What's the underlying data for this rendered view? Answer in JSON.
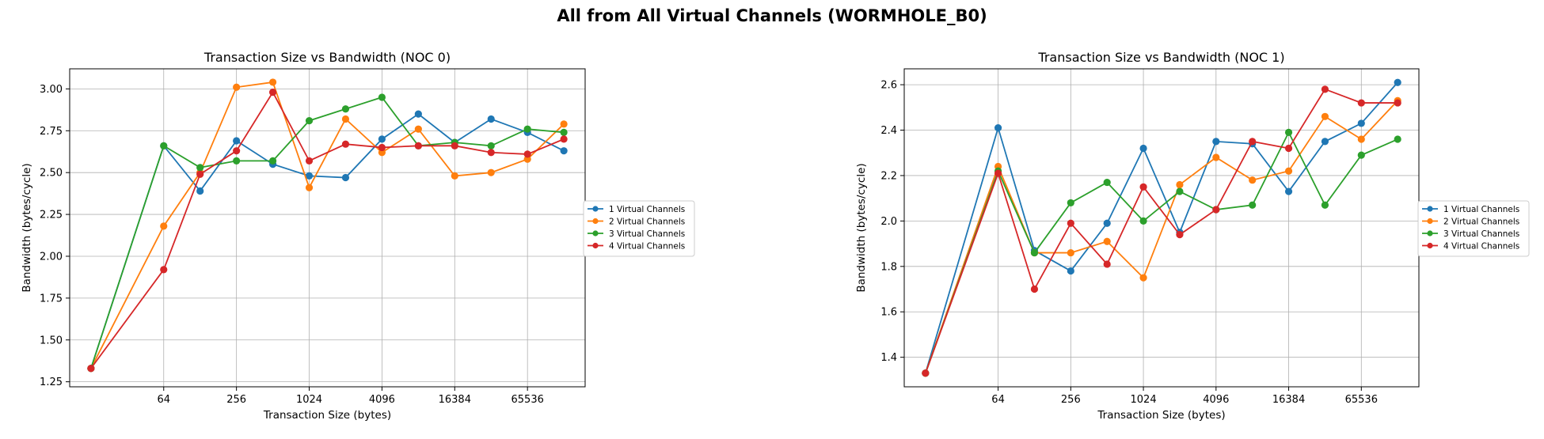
{
  "suptitle": "All from All Virtual Channels (WORMHOLE_B0)",
  "colors": [
    "#1f77b4",
    "#ff7f0e",
    "#2ca02c",
    "#d62728"
  ],
  "chart_data": [
    {
      "type": "line",
      "title": "Transaction Size vs Bandwidth (NOC 0)",
      "xlabel": "Transaction Size (bytes)",
      "ylabel": "Bandwidth (bytes/cycle)",
      "x_scale": "log2",
      "x": [
        16,
        64,
        128,
        256,
        512,
        1024,
        2048,
        4096,
        8192,
        16384,
        32768,
        65536,
        131072
      ],
      "x_ticks": [
        "64",
        "256",
        "1024",
        "4096",
        "16384",
        "65536"
      ],
      "x_tick_values": [
        64,
        256,
        1024,
        4096,
        16384,
        65536
      ],
      "ylim": [
        1.22,
        3.12
      ],
      "y_ticks": [
        "1.25",
        "1.50",
        "1.75",
        "2.00",
        "2.25",
        "2.50",
        "2.75",
        "3.00"
      ],
      "y_tick_values": [
        1.25,
        1.5,
        1.75,
        2.0,
        2.25,
        2.5,
        2.75,
        3.0
      ],
      "grid": true,
      "legend": "right-outside",
      "series": [
        {
          "name": "1 Virtual Channels",
          "values": [
            1.33,
            2.66,
            2.39,
            2.69,
            2.55,
            2.48,
            2.47,
            2.7,
            2.85,
            2.68,
            2.82,
            2.74,
            2.63
          ]
        },
        {
          "name": "2 Virtual Channels",
          "values": [
            1.33,
            2.18,
            2.5,
            3.01,
            3.04,
            2.41,
            2.82,
            2.62,
            2.76,
            2.48,
            2.5,
            2.58,
            2.79
          ]
        },
        {
          "name": "3 Virtual Channels",
          "values": [
            1.33,
            2.66,
            2.53,
            2.57,
            2.57,
            2.81,
            2.88,
            2.95,
            2.66,
            2.68,
            2.66,
            2.76,
            2.74
          ]
        },
        {
          "name": "4 Virtual Channels",
          "values": [
            1.33,
            1.92,
            2.49,
            2.63,
            2.98,
            2.57,
            2.67,
            2.65,
            2.66,
            2.66,
            2.62,
            2.61,
            2.7
          ]
        }
      ]
    },
    {
      "type": "line",
      "title": "Transaction Size vs Bandwidth (NOC 1)",
      "xlabel": "Transaction Size (bytes)",
      "ylabel": "Bandwidth (bytes/cycle)",
      "x_scale": "log2",
      "x": [
        16,
        64,
        128,
        256,
        512,
        1024,
        2048,
        4096,
        8192,
        16384,
        32768,
        65536,
        131072
      ],
      "x_ticks": [
        "64",
        "256",
        "1024",
        "4096",
        "16384",
        "65536"
      ],
      "x_tick_values": [
        64,
        256,
        1024,
        4096,
        16384,
        65536
      ],
      "ylim": [
        1.27,
        2.67
      ],
      "y_ticks": [
        "1.4",
        "1.6",
        "1.8",
        "2.0",
        "2.2",
        "2.4",
        "2.6"
      ],
      "y_tick_values": [
        1.4,
        1.6,
        1.8,
        2.0,
        2.2,
        2.4,
        2.6
      ],
      "grid": true,
      "legend": "right-outside",
      "series": [
        {
          "name": "1 Virtual Channels",
          "values": [
            1.33,
            2.41,
            1.87,
            1.78,
            1.99,
            2.32,
            1.95,
            2.35,
            2.34,
            2.13,
            2.35,
            2.43,
            2.61
          ]
        },
        {
          "name": "2 Virtual Channels",
          "values": [
            1.33,
            2.24,
            1.86,
            1.86,
            1.91,
            1.75,
            2.16,
            2.28,
            2.18,
            2.22,
            2.46,
            2.36,
            2.53
          ]
        },
        {
          "name": "3 Virtual Channels",
          "values": [
            1.33,
            2.22,
            1.86,
            2.08,
            2.17,
            2.0,
            2.13,
            2.05,
            2.07,
            2.39,
            2.07,
            2.29,
            2.36
          ]
        },
        {
          "name": "4 Virtual Channels",
          "values": [
            1.33,
            2.21,
            1.7,
            1.99,
            1.81,
            2.15,
            1.94,
            2.05,
            2.35,
            2.32,
            2.58,
            2.52,
            2.52
          ]
        }
      ]
    }
  ]
}
